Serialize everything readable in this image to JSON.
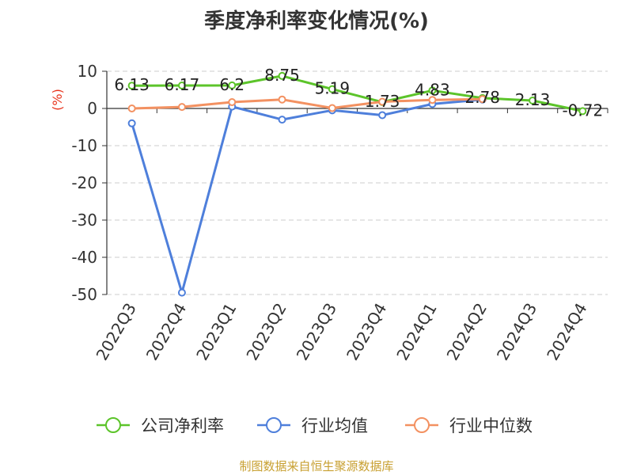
{
  "source_text": "制图数据来自恒生聚源数据库",
  "chart_data": {
    "type": "line",
    "title": "季度净利率变化情况(%)",
    "ylabel": "(%)",
    "xlabel": "",
    "categories": [
      "2022Q3",
      "2022Q4",
      "2023Q1",
      "2023Q2",
      "2023Q3",
      "2023Q4",
      "2024Q1",
      "2024Q2",
      "2024Q3",
      "2024Q4"
    ],
    "yticks": [
      10,
      0,
      -10,
      -20,
      -30,
      -40,
      -50
    ],
    "ylim": [
      -50,
      10
    ],
    "grid": "horizontal-dashed",
    "legend_position": "bottom",
    "series": [
      {
        "name": "公司净利率",
        "color": "#5cc42a",
        "values": [
          6.13,
          6.17,
          6.2,
          8.75,
          5.19,
          1.73,
          4.83,
          2.78,
          2.13,
          -0.72
        ],
        "labels": [
          "6.13",
          "6.17",
          "6.2",
          "8.75",
          "5.19",
          "1.73",
          "4.83",
          "2.78",
          "2.13",
          "-0.72"
        ]
      },
      {
        "name": "行业均值",
        "color": "#4e7fdb",
        "values": [
          -4.0,
          -49.5,
          0.5,
          -3.0,
          -0.5,
          -1.8,
          1.2,
          2.4,
          null,
          null
        ]
      },
      {
        "name": "行业中位数",
        "color": "#f39161",
        "values": [
          0.0,
          0.4,
          1.7,
          2.4,
          0.1,
          1.8,
          2.3,
          2.5,
          null,
          null
        ]
      }
    ]
  }
}
